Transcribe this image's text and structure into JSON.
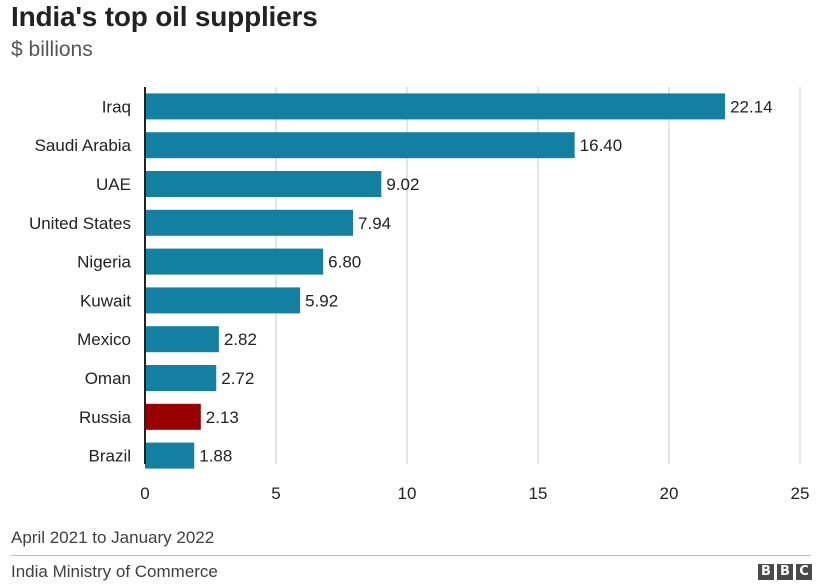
{
  "header": {
    "title": "India's top oil suppliers",
    "subtitle": "$ billions"
  },
  "footer": {
    "period": "April 2021 to January 2022",
    "source": "India Ministry of Commerce",
    "logo_letters": [
      "B",
      "B",
      "C"
    ]
  },
  "colors": {
    "bar": "#1380A1",
    "highlight": "#990000",
    "grid": "#cbcbcb",
    "axis": "#222222",
    "text": "#222222"
  },
  "chart_data": {
    "type": "bar",
    "orientation": "horizontal",
    "title": "India's top oil suppliers",
    "subtitle": "$ billions",
    "categories": [
      "Iraq",
      "Saudi Arabia",
      "UAE",
      "United States",
      "Nigeria",
      "Kuwait",
      "Mexico",
      "Oman",
      "Russia",
      "Brazil"
    ],
    "values": [
      22.14,
      16.4,
      9.02,
      7.94,
      6.8,
      5.92,
      2.82,
      2.72,
      2.13,
      1.88
    ],
    "value_labels": [
      "22.14",
      "16.40",
      "9.02",
      "7.94",
      "6.80",
      "5.92",
      "2.82",
      "2.72",
      "2.13",
      "1.88"
    ],
    "highlight": "Russia",
    "xlim": [
      0,
      25
    ],
    "xticks": [
      0,
      5,
      10,
      15,
      20,
      25
    ],
    "grid": true,
    "legend": "none"
  }
}
